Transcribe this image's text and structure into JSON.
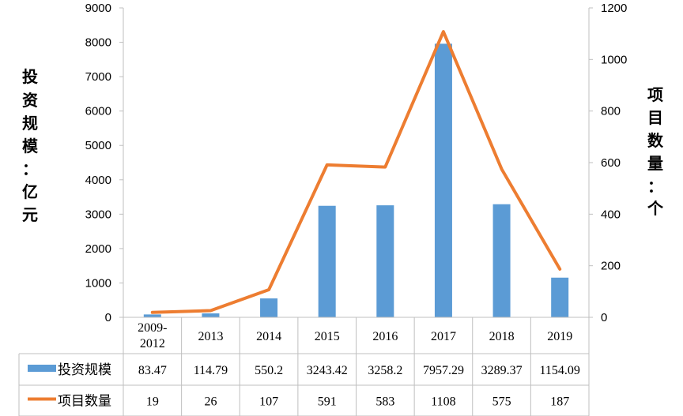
{
  "chart_data": {
    "type": "bar+line",
    "categories": [
      "2009-2012",
      "2013",
      "2014",
      "2015",
      "2016",
      "2017",
      "2018",
      "2019"
    ],
    "category_lines": [
      [
        "2009-",
        "2012"
      ],
      [
        "2013"
      ],
      [
        "2014"
      ],
      [
        "2015"
      ],
      [
        "2016"
      ],
      [
        "2017"
      ],
      [
        "2018"
      ],
      [
        "2019"
      ]
    ],
    "series": [
      {
        "name": "投资规模",
        "type": "bar",
        "axis": "left",
        "color": "#5B9BD5",
        "values": [
          83.47,
          114.79,
          550.2,
          3243.42,
          3258.2,
          7957.29,
          3289.37,
          1154.09
        ],
        "labels": [
          "83.47",
          "114.79",
          "550.2",
          "3243.42",
          "3258.2",
          "7957.29",
          "3289.37",
          "1154.09"
        ]
      },
      {
        "name": "项目数量",
        "type": "line",
        "axis": "right",
        "color": "#ED7D31",
        "values": [
          19,
          26,
          107,
          591,
          583,
          1108,
          575,
          187
        ],
        "labels": [
          "19",
          "26",
          "107",
          "591",
          "583",
          "1108",
          "575",
          "187"
        ]
      }
    ],
    "y_left": {
      "label_chars": [
        "投",
        "资",
        "规",
        "模",
        "：",
        "亿",
        "元"
      ],
      "range": [
        0,
        9000
      ],
      "ticks": [
        "0",
        "1000",
        "2000",
        "3000",
        "4000",
        "5000",
        "6000",
        "7000",
        "8000",
        "9000"
      ]
    },
    "y_right": {
      "label_chars": [
        "项",
        "目",
        "数",
        "量",
        "：",
        "个"
      ],
      "range": [
        0,
        1200
      ],
      "ticks": [
        "0",
        "200",
        "400",
        "600",
        "800",
        "1000",
        "1200"
      ]
    },
    "data_table": true,
    "grid": false
  }
}
